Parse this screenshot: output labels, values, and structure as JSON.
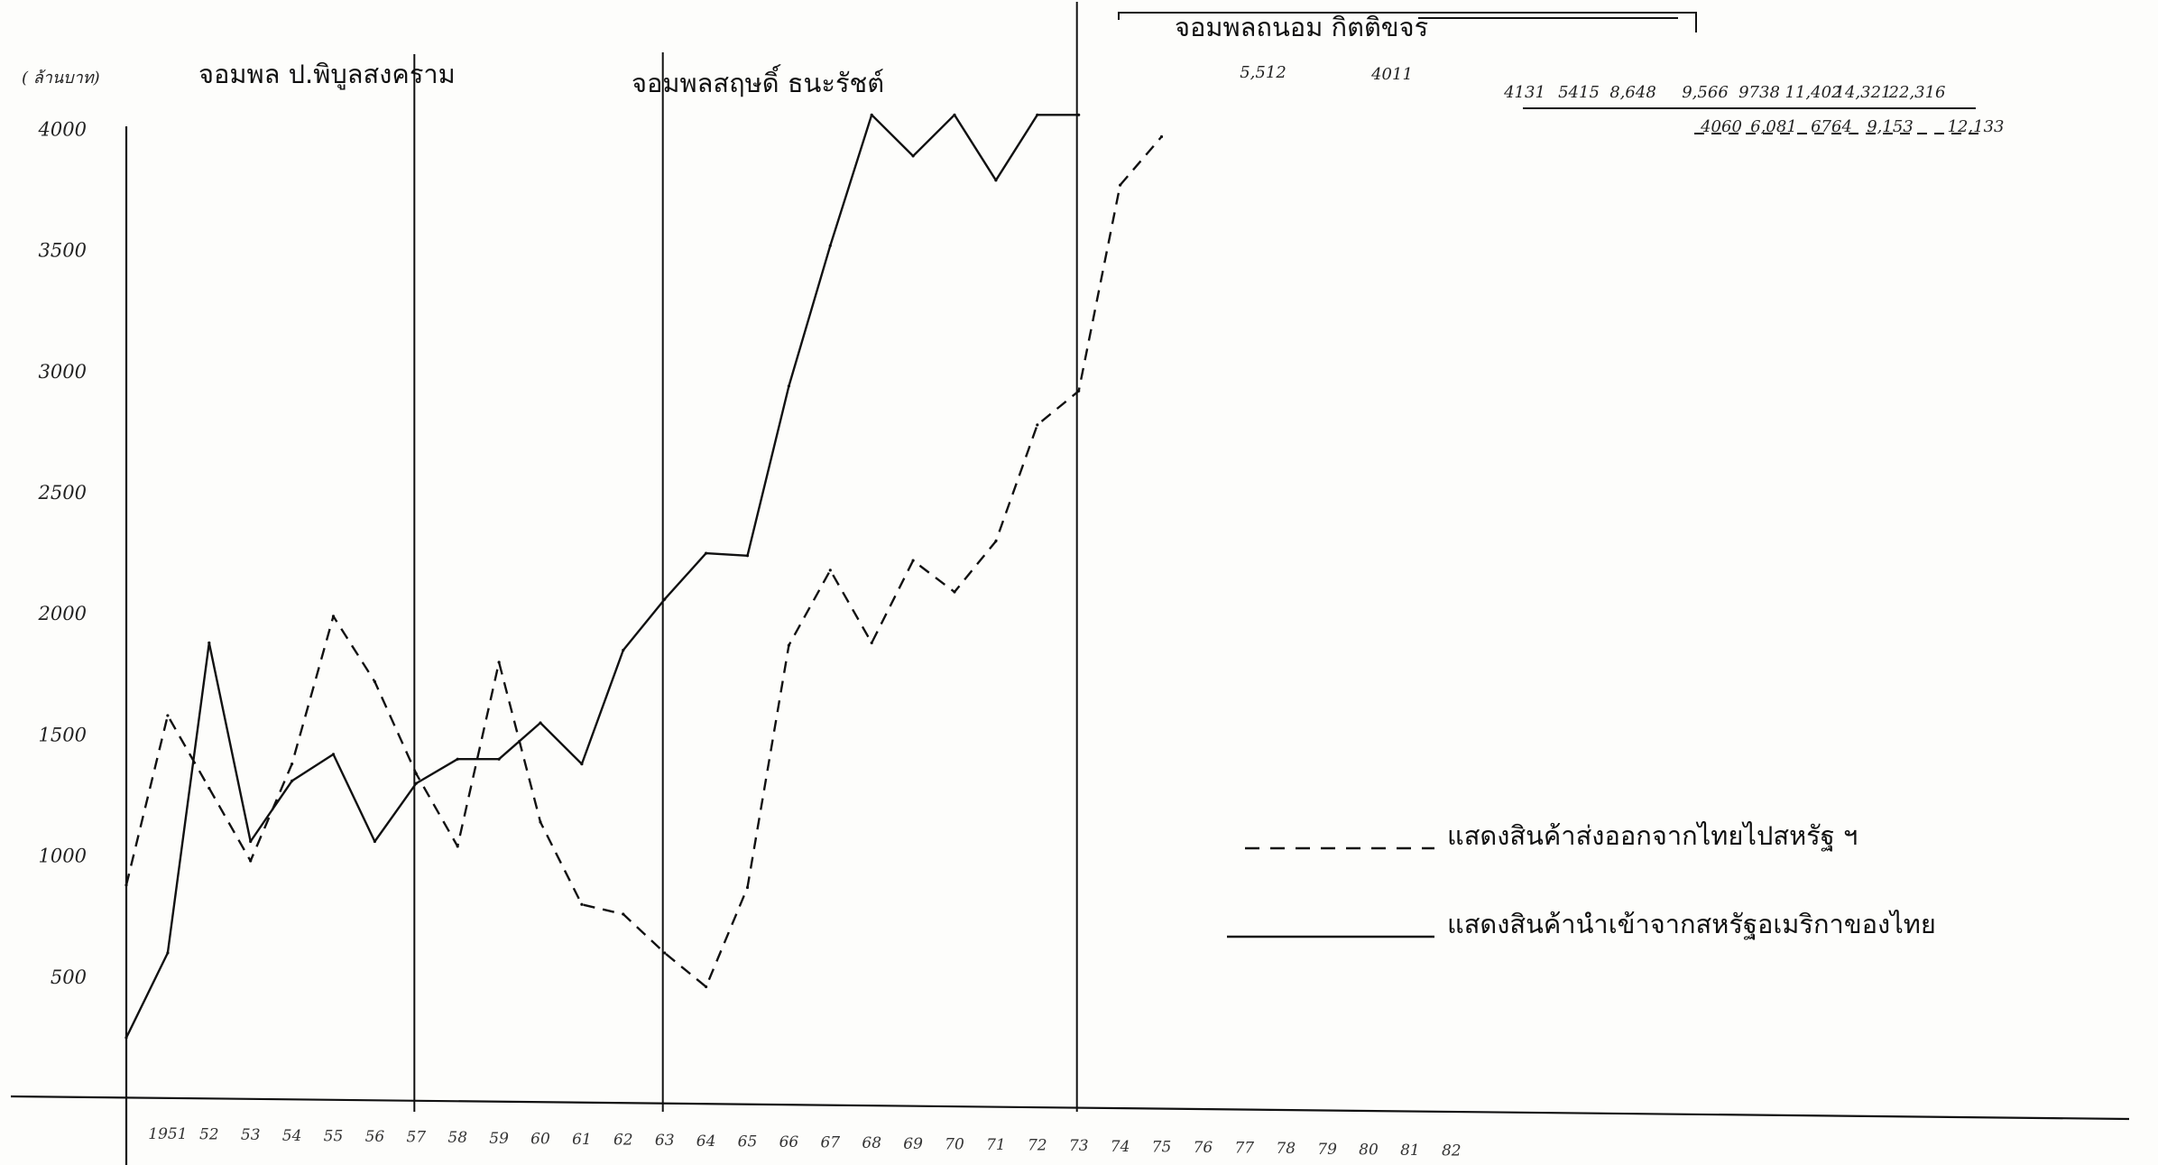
{
  "chart_data": {
    "type": "line",
    "ylabel": "( ล้านบาท)",
    "ylim": [
      0,
      4300
    ],
    "yticks": [
      500,
      1000,
      1500,
      2000,
      2500,
      3000,
      3500,
      4000
    ],
    "ytick_labels": [
      "500",
      "1000",
      "1500",
      "2000",
      "2500",
      "3000",
      "3500",
      "4000"
    ],
    "x": [
      1950,
      1951,
      1952,
      1953,
      1954,
      1955,
      1956,
      1957,
      1958,
      1959,
      1960,
      1961,
      1962,
      1963,
      1964,
      1965,
      1966,
      1967,
      1968,
      1969,
      1970,
      1971,
      1972,
      1973,
      1974,
      1975,
      1976,
      1977,
      1978,
      1979,
      1980,
      1981
    ],
    "xtick_labels": [
      "1951",
      "52",
      "53",
      "54",
      "55",
      "56",
      "57",
      "58",
      "59",
      "60",
      "61",
      "62",
      "63",
      "64",
      "65",
      "66",
      "67",
      "68",
      "69",
      "70",
      "71",
      "72",
      "73",
      "74",
      "75",
      "76",
      "77",
      "78",
      "79",
      "80",
      "81",
      "82"
    ],
    "series": [
      {
        "name": "แสดงสินค้าส่งออกจากไทยไปสหรัฐ ฯ",
        "style": "dashed",
        "x": [
          1950,
          1951,
          1952,
          1953,
          1954,
          1955,
          1956,
          1957,
          1958,
          1959,
          1960,
          1961,
          1962,
          1963,
          1964,
          1965,
          1966,
          1967,
          1968,
          1969,
          1970,
          1971,
          1972,
          1973,
          1974,
          1975
        ],
        "values": [
          880,
          1580,
          1280,
          980,
          1380,
          1990,
          1720,
          1340,
          1040,
          1800,
          1140,
          800,
          760,
          600,
          460,
          870,
          1870,
          2180,
          1880,
          2220,
          2090,
          2300,
          2780,
          2920,
          3770,
          3970
        ]
      },
      {
        "name": "แสดงสินค้านำเข้าจากสหรัฐอเมริกาของไทย",
        "style": "solid",
        "x": [
          1950,
          1951,
          1952,
          1953,
          1954,
          1955,
          1956,
          1957,
          1958,
          1959,
          1960,
          1961,
          1962,
          1963,
          1964,
          1965,
          1966,
          1967,
          1968,
          1969,
          1970,
          1971,
          1972,
          1973
        ],
        "values": [
          250,
          600,
          1880,
          1060,
          1310,
          1420,
          1060,
          1300,
          1400,
          1400,
          1550,
          1380,
          1850,
          2060,
          2250,
          2240,
          2940,
          3520,
          4060,
          3890,
          4060,
          3790,
          4060,
          4060
        ]
      }
    ],
    "periods": [
      "จอมพล ป.พิบูลสงคราม",
      "จอมพลสฤษดิ์ ธนะรัชต์",
      "จอมพลถนอม กิตติขจร"
    ],
    "annotations": {
      "peak_left": "5,512",
      "peak_right": "4011",
      "import_values": [
        "4131",
        "5415",
        "8,648",
        "9,566",
        "9738",
        "11,402",
        "14,321",
        "22,316"
      ],
      "export_values": [
        "4060",
        "6,081",
        "6764",
        "9,153",
        "12,133"
      ]
    },
    "legend": [
      "แสดงสินค้าส่งออกจากไทยไปสหรัฐ ฯ",
      "แสดงสินค้านำเข้าจากสหรัฐอเมริกาของไทย"
    ],
    "grid": false
  }
}
